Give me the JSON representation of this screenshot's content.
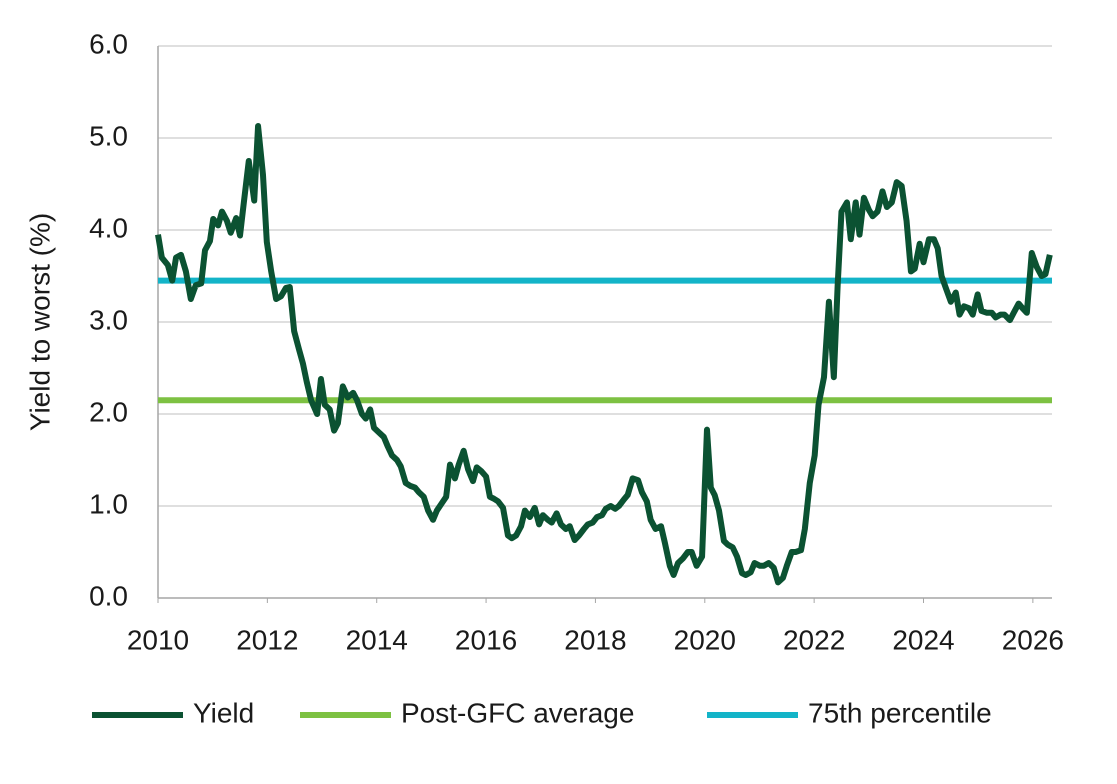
{
  "chart_data": {
    "type": "line",
    "y_label": "Yield to worst (%)",
    "xlim": [
      2010,
      2026.35
    ],
    "xticks": [
      2010,
      2012,
      2014,
      2016,
      2018,
      2020,
      2022,
      2024,
      2026
    ],
    "ylim": [
      0,
      6
    ],
    "yticks": [
      {
        "value": 0,
        "label": "0.0"
      },
      {
        "value": 1,
        "label": "1.0"
      },
      {
        "value": 2,
        "label": "2.0"
      },
      {
        "value": 3,
        "label": "3.0"
      },
      {
        "value": 4,
        "label": "4.0"
      },
      {
        "value": 5,
        "label": "5.0"
      },
      {
        "value": 6,
        "label": "6.0"
      }
    ],
    "grid": true,
    "legend": "bottom",
    "series": [
      {
        "name": "Yield",
        "color": "#0b5232",
        "x": [
          2010.0,
          2010.07,
          2010.18,
          2010.26,
          2010.33,
          2010.42,
          2010.51,
          2010.6,
          2010.69,
          2010.79,
          2010.86,
          2010.95,
          2011.01,
          2011.1,
          2011.17,
          2011.26,
          2011.33,
          2011.43,
          2011.5,
          2011.57,
          2011.66,
          2011.76,
          2011.83,
          2011.92,
          2011.99,
          2012.07,
          2012.16,
          2012.25,
          2012.34,
          2012.41,
          2012.49,
          2012.58,
          2012.65,
          2012.72,
          2012.8,
          2012.91,
          2012.98,
          2013.05,
          2013.14,
          2013.22,
          2013.29,
          2013.38,
          2013.47,
          2013.57,
          2013.64,
          2013.73,
          2013.8,
          2013.88,
          2013.95,
          2014.04,
          2014.13,
          2014.2,
          2014.28,
          2014.37,
          2014.44,
          2014.53,
          2014.61,
          2014.7,
          2014.77,
          2014.86,
          2014.94,
          2015.03,
          2015.1,
          2015.19,
          2015.27,
          2015.34,
          2015.43,
          2015.5,
          2015.59,
          2015.67,
          2015.76,
          2015.83,
          2015.91,
          2016.0,
          2016.07,
          2016.14,
          2016.22,
          2016.31,
          2016.4,
          2016.47,
          2016.55,
          2016.64,
          2016.71,
          2016.8,
          2016.89,
          2016.97,
          2017.04,
          2017.13,
          2017.2,
          2017.29,
          2017.37,
          2017.46,
          2017.53,
          2017.62,
          2017.7,
          2017.79,
          2017.86,
          2017.95,
          2018.03,
          2018.12,
          2018.19,
          2018.28,
          2018.36,
          2018.43,
          2018.52,
          2018.59,
          2018.68,
          2018.78,
          2018.85,
          2018.94,
          2019.01,
          2019.1,
          2019.2,
          2019.27,
          2019.36,
          2019.43,
          2019.51,
          2019.6,
          2019.69,
          2019.76,
          2019.85,
          2019.95,
          2020.04,
          2020.11,
          2020.18,
          2020.26,
          2020.35,
          2020.42,
          2020.51,
          2020.59,
          2020.68,
          2020.75,
          2020.84,
          2020.91,
          2021.01,
          2021.08,
          2021.17,
          2021.26,
          2021.34,
          2021.43,
          2021.5,
          2021.59,
          2021.66,
          2021.76,
          2021.83,
          2021.92,
          2022.01,
          2022.08,
          2022.18,
          2022.27,
          2022.36,
          2022.43,
          2022.5,
          2022.6,
          2022.67,
          2022.76,
          2022.83,
          2022.91,
          2023.0,
          2023.07,
          2023.16,
          2023.25,
          2023.33,
          2023.42,
          2023.51,
          2023.6,
          2023.69,
          2023.77,
          2023.84,
          2023.93,
          2024.0,
          2024.1,
          2024.19,
          2024.26,
          2024.33,
          2024.42,
          2024.5,
          2024.59,
          2024.66,
          2024.74,
          2024.83,
          2024.9,
          2024.99,
          2025.06,
          2025.16,
          2025.25,
          2025.32,
          2025.41,
          2025.48,
          2025.58,
          2025.65,
          2025.74,
          2025.81,
          2025.89,
          2025.98,
          2026.07,
          2026.16,
          2026.23,
          2026.31
        ],
        "values": [
          3.95,
          3.7,
          3.62,
          3.45,
          3.7,
          3.73,
          3.55,
          3.25,
          3.4,
          3.42,
          3.78,
          3.88,
          4.12,
          4.05,
          4.2,
          4.1,
          3.97,
          4.13,
          3.94,
          4.3,
          4.75,
          4.32,
          5.13,
          4.6,
          3.87,
          3.55,
          3.25,
          3.28,
          3.37,
          3.38,
          2.9,
          2.7,
          2.55,
          2.35,
          2.15,
          2.0,
          2.38,
          2.1,
          2.05,
          1.82,
          1.9,
          2.3,
          2.18,
          2.23,
          2.15,
          2.0,
          1.95,
          2.05,
          1.85,
          1.8,
          1.75,
          1.65,
          1.55,
          1.5,
          1.43,
          1.25,
          1.22,
          1.2,
          1.15,
          1.1,
          0.95,
          0.85,
          0.95,
          1.03,
          1.1,
          1.45,
          1.3,
          1.45,
          1.6,
          1.4,
          1.27,
          1.42,
          1.38,
          1.32,
          1.1,
          1.08,
          1.05,
          0.98,
          0.68,
          0.65,
          0.68,
          0.78,
          0.95,
          0.88,
          0.98,
          0.8,
          0.9,
          0.85,
          0.82,
          0.92,
          0.8,
          0.75,
          0.78,
          0.63,
          0.68,
          0.75,
          0.8,
          0.82,
          0.88,
          0.9,
          0.97,
          1.0,
          0.97,
          1.0,
          1.07,
          1.12,
          1.3,
          1.28,
          1.15,
          1.05,
          0.85,
          0.75,
          0.78,
          0.6,
          0.35,
          0.25,
          0.38,
          0.43,
          0.5,
          0.5,
          0.35,
          0.45,
          1.83,
          1.2,
          1.12,
          0.95,
          0.62,
          0.58,
          0.55,
          0.45,
          0.27,
          0.25,
          0.28,
          0.38,
          0.35,
          0.35,
          0.38,
          0.33,
          0.17,
          0.22,
          0.35,
          0.5,
          0.5,
          0.52,
          0.75,
          1.25,
          1.55,
          2.1,
          2.4,
          3.22,
          2.4,
          3.4,
          4.2,
          4.3,
          3.9,
          4.3,
          3.95,
          4.35,
          4.22,
          4.15,
          4.2,
          4.42,
          4.25,
          4.3,
          4.52,
          4.48,
          4.1,
          3.55,
          3.58,
          3.85,
          3.65,
          3.9,
          3.9,
          3.8,
          3.5,
          3.35,
          3.22,
          3.32,
          3.08,
          3.17,
          3.15,
          3.08,
          3.3,
          3.12,
          3.1,
          3.1,
          3.05,
          3.08,
          3.08,
          3.02,
          3.1,
          3.2,
          3.15,
          3.1,
          3.75,
          3.6,
          3.5,
          3.52,
          3.73
        ]
      },
      {
        "name": "Post-GFC average",
        "color": "#7dc142",
        "x": [
          2010,
          2026.35
        ],
        "values": [
          2.15,
          2.15
        ]
      },
      {
        "name": "75th percentile",
        "color": "#13b4c8",
        "x": [
          2010,
          2026.35
        ],
        "values": [
          3.45,
          3.45
        ]
      }
    ]
  }
}
